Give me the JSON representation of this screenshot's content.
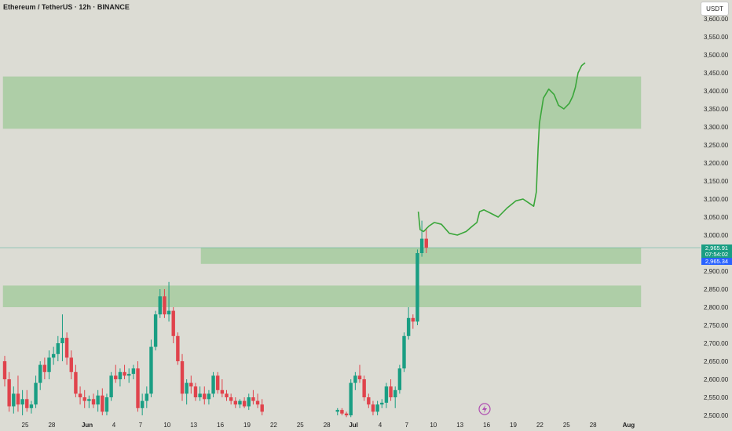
{
  "header": {
    "title": "Ethereum / TetherUS · 12h · BINANCE",
    "currency": "USDT"
  },
  "price_tags": {
    "last_price": "2,965.91",
    "countdown": "07:54:02",
    "second_price": "2,965.34"
  },
  "colors": {
    "background": "#dcdcd4",
    "zone": "#9fca98",
    "up": "#1a9e83",
    "down": "#e0434c",
    "projection": "#3aa63a",
    "tag_green": "#1a9e83",
    "tag_blue": "#2962ff"
  },
  "chart_data": {
    "type": "candlestick",
    "ylim": [
      2490,
      3640
    ],
    "y_ticks": [
      2500,
      2550,
      2600,
      2650,
      2700,
      2750,
      2800,
      2850,
      2900,
      2950,
      3000,
      3050,
      3100,
      3150,
      3200,
      3250,
      3300,
      3350,
      3400,
      3450,
      3500,
      3550,
      3600
    ],
    "y_tick_labels": [
      "2,500.00",
      "2,550.00",
      "2,600.00",
      "2,650.00",
      "2,700.00",
      "2,750.00",
      "2,800.00",
      "2,850.00",
      "2,900.00",
      "2,950.00",
      "3,000.00",
      "3,050.00",
      "3,100.00",
      "3,150.00",
      "3,200.00",
      "3,250.00",
      "3,300.00",
      "3,350.00",
      "3,400.00",
      "3,450.00",
      "3,500.00",
      "3,550.00",
      "3,600.00"
    ],
    "x_labels": [
      {
        "label": "25",
        "day": 0,
        "bold": false
      },
      {
        "label": "28",
        "day": 3,
        "bold": false
      },
      {
        "label": "Jun",
        "day": 7,
        "bold": true
      },
      {
        "label": "4",
        "day": 10,
        "bold": false
      },
      {
        "label": "7",
        "day": 13,
        "bold": false
      },
      {
        "label": "10",
        "day": 16,
        "bold": false
      },
      {
        "label": "13",
        "day": 19,
        "bold": false
      },
      {
        "label": "16",
        "day": 22,
        "bold": false
      },
      {
        "label": "19",
        "day": 25,
        "bold": false
      },
      {
        "label": "22",
        "day": 28,
        "bold": false
      },
      {
        "label": "25",
        "day": 31,
        "bold": false
      },
      {
        "label": "28",
        "day": 34,
        "bold": false
      },
      {
        "label": "Jul",
        "day": 37,
        "bold": true
      },
      {
        "label": "4",
        "day": 40,
        "bold": false
      },
      {
        "label": "7",
        "day": 43,
        "bold": false
      },
      {
        "label": "10",
        "day": 46,
        "bold": false
      },
      {
        "label": "13",
        "day": 49,
        "bold": false
      },
      {
        "label": "16",
        "day": 52,
        "bold": false
      },
      {
        "label": "19",
        "day": 55,
        "bold": false
      },
      {
        "label": "22",
        "day": 58,
        "bold": false
      },
      {
        "label": "25",
        "day": 61,
        "bold": false
      },
      {
        "label": "28",
        "day": 64,
        "bold": false
      },
      {
        "label": "Aug",
        "day": 68,
        "bold": true
      }
    ],
    "zones": [
      {
        "from_day": -2.5,
        "to_day": 69.4,
        "low": 3295,
        "high": 3440
      },
      {
        "from_day": 19.8,
        "to_day": 69.4,
        "low": 2920,
        "high": 2965
      },
      {
        "from_day": -2.5,
        "to_day": 69.4,
        "low": 2800,
        "high": 2860
      }
    ],
    "candles": [
      [
        -2.3,
        2650,
        2665,
        2580,
        2600
      ],
      [
        -1.8,
        2600,
        2620,
        2510,
        2525
      ],
      [
        -1.3,
        2525,
        2580,
        2505,
        2560
      ],
      [
        -0.8,
        2560,
        2610,
        2510,
        2530
      ],
      [
        -0.3,
        2530,
        2570,
        2500,
        2545
      ],
      [
        0.2,
        2545,
        2570,
        2510,
        2520
      ],
      [
        0.7,
        2520,
        2540,
        2505,
        2530
      ],
      [
        1.2,
        2530,
        2610,
        2520,
        2590
      ],
      [
        1.7,
        2590,
        2650,
        2570,
        2640
      ],
      [
        2.2,
        2640,
        2660,
        2600,
        2620
      ],
      [
        2.7,
        2620,
        2680,
        2600,
        2660
      ],
      [
        3.2,
        2660,
        2690,
        2640,
        2670
      ],
      [
        3.7,
        2670,
        2720,
        2650,
        2700
      ],
      [
        4.2,
        2700,
        2780,
        2650,
        2715
      ],
      [
        4.7,
        2715,
        2730,
        2640,
        2660
      ],
      [
        5.2,
        2660,
        2680,
        2600,
        2620
      ],
      [
        5.7,
        2620,
        2640,
        2550,
        2560
      ],
      [
        6.2,
        2560,
        2580,
        2530,
        2550
      ],
      [
        6.7,
        2550,
        2570,
        2520,
        2540
      ],
      [
        7.2,
        2540,
        2555,
        2520,
        2545
      ],
      [
        7.7,
        2545,
        2560,
        2520,
        2530
      ],
      [
        8.2,
        2530,
        2570,
        2510,
        2555
      ],
      [
        8.7,
        2555,
        2575,
        2500,
        2510
      ],
      [
        9.2,
        2510,
        2560,
        2500,
        2550
      ],
      [
        9.7,
        2550,
        2620,
        2540,
        2610
      ],
      [
        10.2,
        2610,
        2640,
        2590,
        2600
      ],
      [
        10.7,
        2600,
        2630,
        2580,
        2620
      ],
      [
        11.2,
        2620,
        2640,
        2600,
        2610
      ],
      [
        11.7,
        2610,
        2630,
        2590,
        2615
      ],
      [
        12.2,
        2615,
        2640,
        2600,
        2630
      ],
      [
        12.7,
        2630,
        2650,
        2510,
        2520
      ],
      [
        13.2,
        2520,
        2560,
        2500,
        2540
      ],
      [
        13.7,
        2540,
        2580,
        2520,
        2560
      ],
      [
        14.2,
        2560,
        2710,
        2550,
        2690
      ],
      [
        14.7,
        2690,
        2790,
        2680,
        2780
      ],
      [
        15.2,
        2780,
        2850,
        2770,
        2830
      ],
      [
        15.7,
        2830,
        2850,
        2770,
        2780
      ],
      [
        16.2,
        2780,
        2870,
        2760,
        2790
      ],
      [
        16.7,
        2790,
        2800,
        2700,
        2720
      ],
      [
        17.2,
        2720,
        2730,
        2640,
        2650
      ],
      [
        17.7,
        2650,
        2670,
        2540,
        2560
      ],
      [
        18.2,
        2560,
        2600,
        2530,
        2590
      ],
      [
        18.7,
        2590,
        2610,
        2560,
        2580
      ],
      [
        19.2,
        2580,
        2590,
        2540,
        2550
      ],
      [
        19.7,
        2550,
        2580,
        2540,
        2560
      ],
      [
        20.2,
        2560,
        2580,
        2530,
        2545
      ],
      [
        20.7,
        2545,
        2570,
        2530,
        2560
      ],
      [
        21.2,
        2560,
        2620,
        2550,
        2610
      ],
      [
        21.7,
        2610,
        2620,
        2560,
        2570
      ],
      [
        22.2,
        2570,
        2600,
        2550,
        2560
      ],
      [
        22.7,
        2560,
        2570,
        2540,
        2550
      ],
      [
        23.2,
        2550,
        2560,
        2530,
        2540
      ],
      [
        23.7,
        2540,
        2550,
        2520,
        2530
      ],
      [
        24.2,
        2530,
        2545,
        2520,
        2540
      ],
      [
        24.7,
        2540,
        2550,
        2520,
        2525
      ],
      [
        25.2,
        2525,
        2560,
        2515,
        2550
      ],
      [
        25.7,
        2550,
        2570,
        2530,
        2540
      ],
      [
        26.2,
        2540,
        2560,
        2520,
        2530
      ],
      [
        26.7,
        2530,
        2545,
        2500,
        2510
      ],
      [
        35.2,
        2510,
        2520,
        2500,
        2515
      ],
      [
        35.7,
        2515,
        2520,
        2500,
        2505
      ],
      [
        36.2,
        2505,
        2510,
        2495,
        2500
      ],
      [
        36.7,
        2500,
        2600,
        2495,
        2590
      ],
      [
        37.2,
        2590,
        2620,
        2570,
        2610
      ],
      [
        37.7,
        2610,
        2640,
        2590,
        2600
      ],
      [
        38.2,
        2600,
        2610,
        2540,
        2550
      ],
      [
        38.7,
        2550,
        2560,
        2520,
        2530
      ],
      [
        39.2,
        2530,
        2540,
        2500,
        2510
      ],
      [
        39.7,
        2510,
        2540,
        2500,
        2530
      ],
      [
        40.2,
        2530,
        2545,
        2520,
        2535
      ],
      [
        40.7,
        2535,
        2590,
        2520,
        2580
      ],
      [
        41.2,
        2580,
        2600,
        2540,
        2550
      ],
      [
        41.7,
        2550,
        2580,
        2520,
        2570
      ],
      [
        42.2,
        2570,
        2640,
        2560,
        2630
      ],
      [
        42.7,
        2630,
        2730,
        2620,
        2720
      ],
      [
        43.2,
        2720,
        2800,
        2710,
        2770
      ],
      [
        43.7,
        2770,
        2780,
        2740,
        2760
      ],
      [
        44.2,
        2760,
        2960,
        2750,
        2950
      ],
      [
        44.7,
        2950,
        3040,
        2940,
        2990
      ],
      [
        45.2,
        2990,
        3020,
        2950,
        2965
      ]
    ],
    "projection": [
      [
        44.3,
        3065
      ],
      [
        44.5,
        3015
      ],
      [
        44.9,
        3010
      ],
      [
        45.5,
        3025
      ],
      [
        46.1,
        3035
      ],
      [
        46.9,
        3030
      ],
      [
        47.8,
        3005
      ],
      [
        48.7,
        3000
      ],
      [
        49.7,
        3010
      ],
      [
        50.4,
        3025
      ],
      [
        50.9,
        3035
      ],
      [
        51.2,
        3065
      ],
      [
        51.7,
        3070
      ],
      [
        52.5,
        3060
      ],
      [
        53.3,
        3050
      ],
      [
        54.3,
        3075
      ],
      [
        55.3,
        3095
      ],
      [
        56.1,
        3100
      ],
      [
        56.7,
        3090
      ],
      [
        57.3,
        3080
      ],
      [
        57.6,
        3120
      ],
      [
        57.8,
        3240
      ],
      [
        57.95,
        3310
      ],
      [
        58.4,
        3380
      ],
      [
        59.0,
        3405
      ],
      [
        59.6,
        3390
      ],
      [
        60.1,
        3360
      ],
      [
        60.7,
        3350
      ],
      [
        61.3,
        3365
      ],
      [
        61.7,
        3385
      ],
      [
        62.0,
        3410
      ],
      [
        62.3,
        3450
      ],
      [
        62.7,
        3470
      ],
      [
        63.1,
        3478
      ]
    ]
  }
}
